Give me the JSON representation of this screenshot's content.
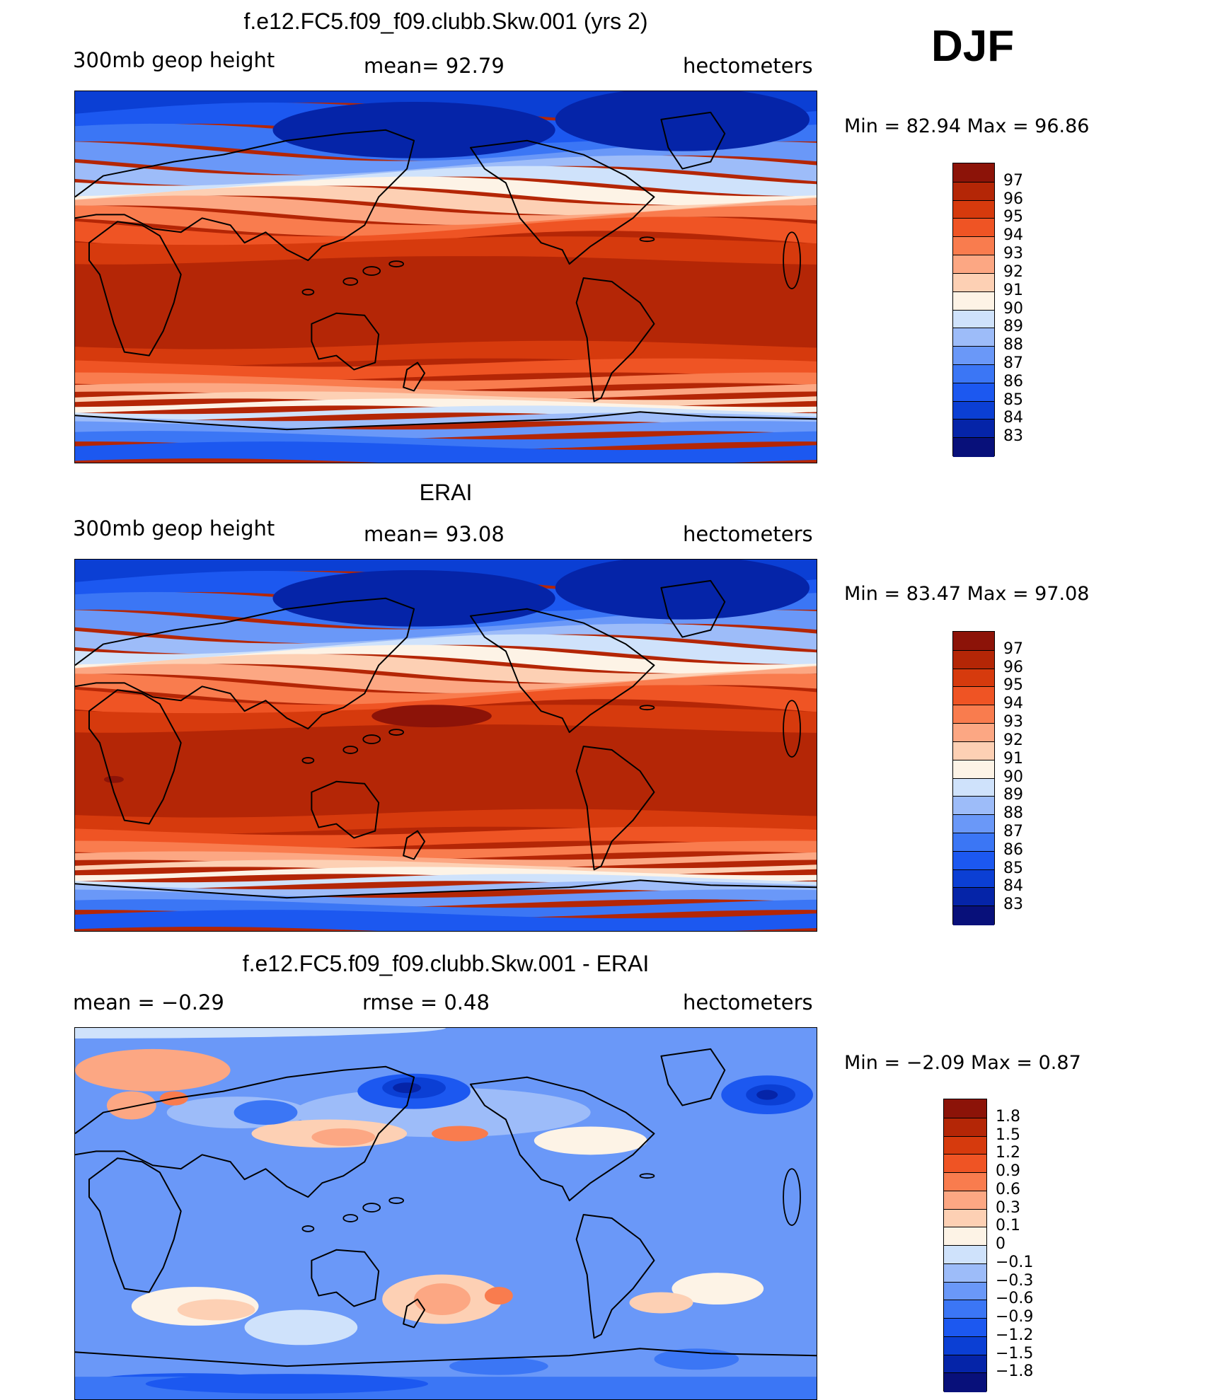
{
  "season": "DJF",
  "panels": [
    {
      "title": "f.e12.FC5.f09_f09.clubb.Skw.001 (yrs 2)",
      "left_label": "300mb  geop  height",
      "center_label": "mean=   92.79",
      "right_label": "hectometers",
      "minmax": "Min  =    82.94  Max  =    96.86",
      "field": "absolute",
      "scale": {
        "colors": [
          "#08107a",
          "#0524a8",
          "#0b3fd4",
          "#1c58f0",
          "#3b76f5",
          "#6a98f8",
          "#9dbcf9",
          "#cfe2fb",
          "#fdf3e6",
          "#fdd0b4",
          "#fca783",
          "#f97c4e",
          "#ef5424",
          "#d63a0d",
          "#b42606",
          "#8c1308"
        ],
        "labels": [
          "83",
          "84",
          "85",
          "86",
          "87",
          "88",
          "89",
          "90",
          "91",
          "92",
          "93",
          "94",
          "95",
          "96",
          "97"
        ]
      }
    },
    {
      "title": "ERAI",
      "left_label": "300mb  geop  height",
      "center_label": "mean=   93.08",
      "right_label": "hectometers",
      "minmax": "Min  =    83.47  Max  =    97.08",
      "field": "absolute",
      "scale": {
        "colors": [
          "#08107a",
          "#0524a8",
          "#0b3fd4",
          "#1c58f0",
          "#3b76f5",
          "#6a98f8",
          "#9dbcf9",
          "#cfe2fb",
          "#fdf3e6",
          "#fdd0b4",
          "#fca783",
          "#f97c4e",
          "#ef5424",
          "#d63a0d",
          "#b42606",
          "#8c1308"
        ],
        "labels": [
          "83",
          "84",
          "85",
          "86",
          "87",
          "88",
          "89",
          "90",
          "91",
          "92",
          "93",
          "94",
          "95",
          "96",
          "97"
        ]
      }
    },
    {
      "title": "f.e12.FC5.f09_f09.clubb.Skw.001 - ERAI",
      "left_label": "mean  =    −0.29",
      "center_label": "rmse  =     0.48",
      "right_label": "hectometers",
      "minmax": "Min  =    −2.09  Max  =      0.87",
      "field": "difference",
      "scale": {
        "colors": [
          "#08107a",
          "#0524a8",
          "#0b3fd4",
          "#1c58f0",
          "#3b76f5",
          "#6a98f8",
          "#9dbcf9",
          "#cfe2fb",
          "#fdf3e6",
          "#fdd0b4",
          "#fca783",
          "#f97c4e",
          "#ef5424",
          "#d63a0d",
          "#b42606",
          "#8c1308"
        ],
        "labels": [
          "−1.8",
          "−1.5",
          "−1.2",
          "−0.9",
          "−0.6",
          "−0.3",
          "−0.1",
          "0",
          "0.1",
          "0.3",
          "0.6",
          "0.9",
          "1.2",
          "1.5",
          "1.8"
        ]
      }
    }
  ]
}
